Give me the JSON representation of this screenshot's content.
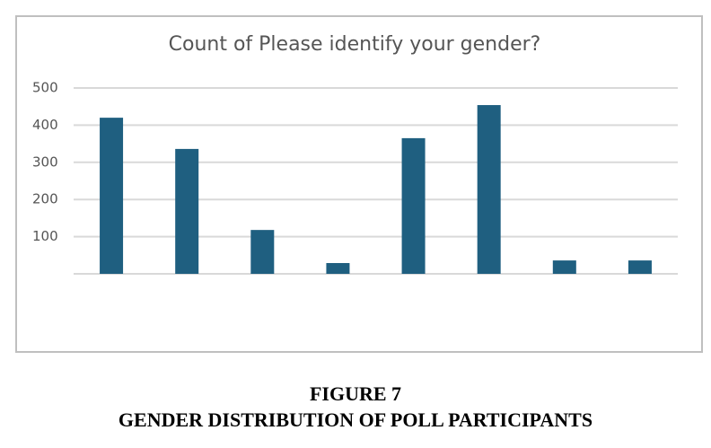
{
  "chart_data": {
    "type": "bar",
    "title": "Count of Please identify your gender?",
    "categories": [
      null,
      null,
      null,
      null,
      null,
      null,
      null,
      null
    ],
    "values": [
      420,
      336,
      118,
      29,
      365,
      454,
      36,
      36
    ],
    "color": "#1f5f80",
    "ylim": [
      0,
      500
    ],
    "yticks": [
      100,
      200,
      300,
      400,
      500
    ],
    "grid": true
  },
  "figure": {
    "number": "FIGURE 7",
    "title": "GENDER DISTRIBUTION OF POLL PARTICIPANTS"
  }
}
